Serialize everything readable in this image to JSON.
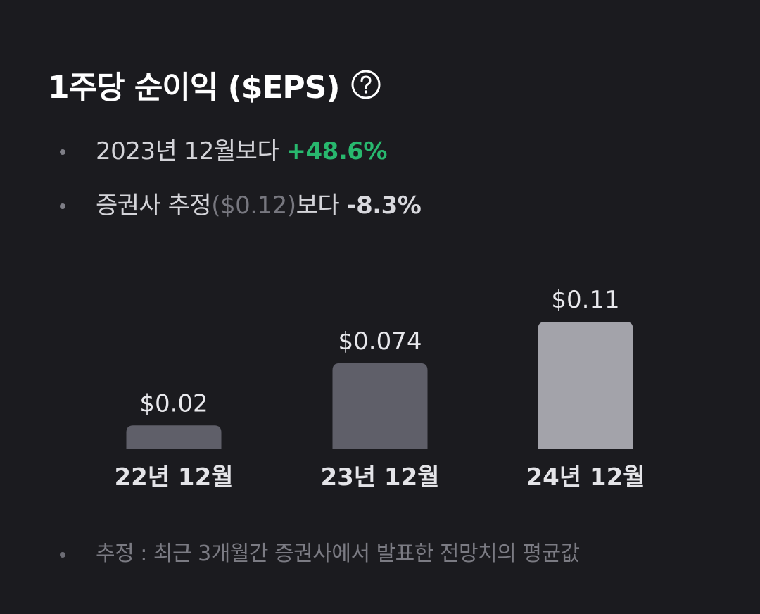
{
  "header": {
    "title": "1주당 순이익 ($EPS)",
    "help_icon": "question-circle-icon"
  },
  "bullets": [
    {
      "prefix": "2023년 12월보다 ",
      "value": "+48.6%"
    },
    {
      "prefix": "증권사 추정",
      "estimate": "($0.12)",
      "suffix": "보다 ",
      "value": "-8.3%"
    }
  ],
  "chart_data": {
    "type": "bar",
    "categories": [
      "22년 12월",
      "23년 12월",
      "24년 12월"
    ],
    "values": [
      0.02,
      0.074,
      0.11
    ],
    "labels": [
      "$0.02",
      "$0.074",
      "$0.11"
    ],
    "title": "",
    "xlabel": "",
    "ylabel": "",
    "grid": false,
    "colors": [
      "#5f5f69",
      "#5f5f69",
      "#a3a3aa"
    ]
  },
  "footnote": "추정 : 최근 3개월간 증권사에서 발표한 전망치의 평균값",
  "colors": {
    "background": "#1b1b1f",
    "positive": "#28b86e",
    "bar": "#5f5f69",
    "bar_highlight": "#a3a3aa"
  }
}
